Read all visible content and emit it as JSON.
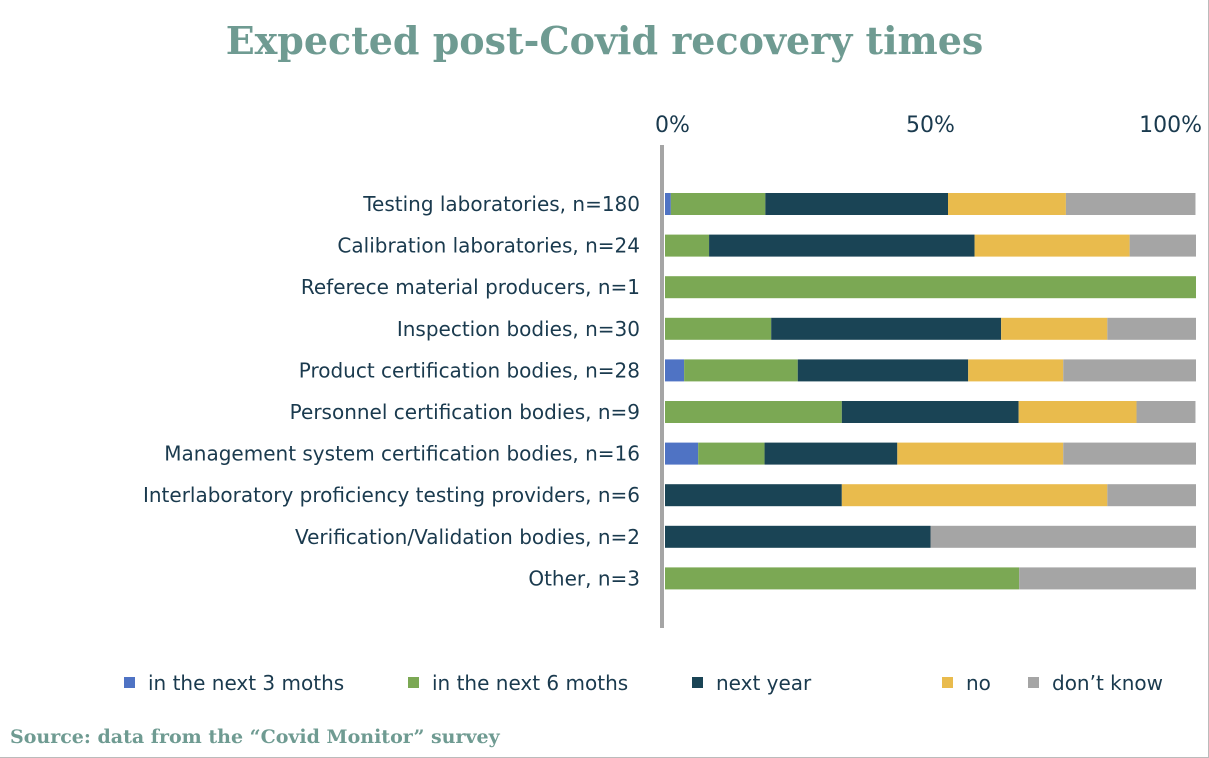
{
  "chart_data": {
    "type": "bar",
    "orientation": "horizontal",
    "stacked": "percent",
    "title": "Expected post-Covid recovery times",
    "source": "Source: data from the “Covid Monitor” survey",
    "xlim": [
      0,
      100
    ],
    "x_ticks": [
      "0%",
      "50%",
      "100%"
    ],
    "x_tick_values": [
      0,
      50,
      100
    ],
    "legend_position": "bottom",
    "categories": [
      "Testing laboratories, n=180",
      "Calibration laboratories, n=24",
      "Referece material producers, n=1",
      "Inspection bodies, n=30",
      "Product certification bodies, n=28",
      "Personnel certification bodies, n=9",
      "Management system certification bodies, n=16",
      "Interlaboratory proficiency testing providers, n=6",
      "Verification/Validation bodies, n=2",
      "Other, n=3"
    ],
    "series": [
      {
        "name": "in the next 3 moths",
        "color": "#4f73c4",
        "values": [
          1.1,
          0,
          0,
          0,
          3.6,
          0,
          6.25,
          0,
          0,
          0
        ]
      },
      {
        "name": "in the next 6 moths",
        "color": "#7ba854",
        "values": [
          17.8,
          8.3,
          100,
          20,
          21.4,
          33.3,
          12.5,
          0,
          0,
          66.7
        ]
      },
      {
        "name": "next year",
        "color": "#1a4455",
        "values": [
          34.4,
          50,
          0,
          43.3,
          32.1,
          33.3,
          25,
          33.3,
          50,
          0
        ]
      },
      {
        "name": "no",
        "color": "#e9bb4d",
        "values": [
          22.2,
          29.2,
          0,
          20,
          17.9,
          22.2,
          31.25,
          50,
          0,
          0
        ]
      },
      {
        "name": "don’t know",
        "color": "#a5a5a5",
        "values": [
          24.4,
          12.5,
          0,
          16.7,
          25,
          11.1,
          25,
          16.7,
          50,
          33.3
        ]
      }
    ]
  }
}
